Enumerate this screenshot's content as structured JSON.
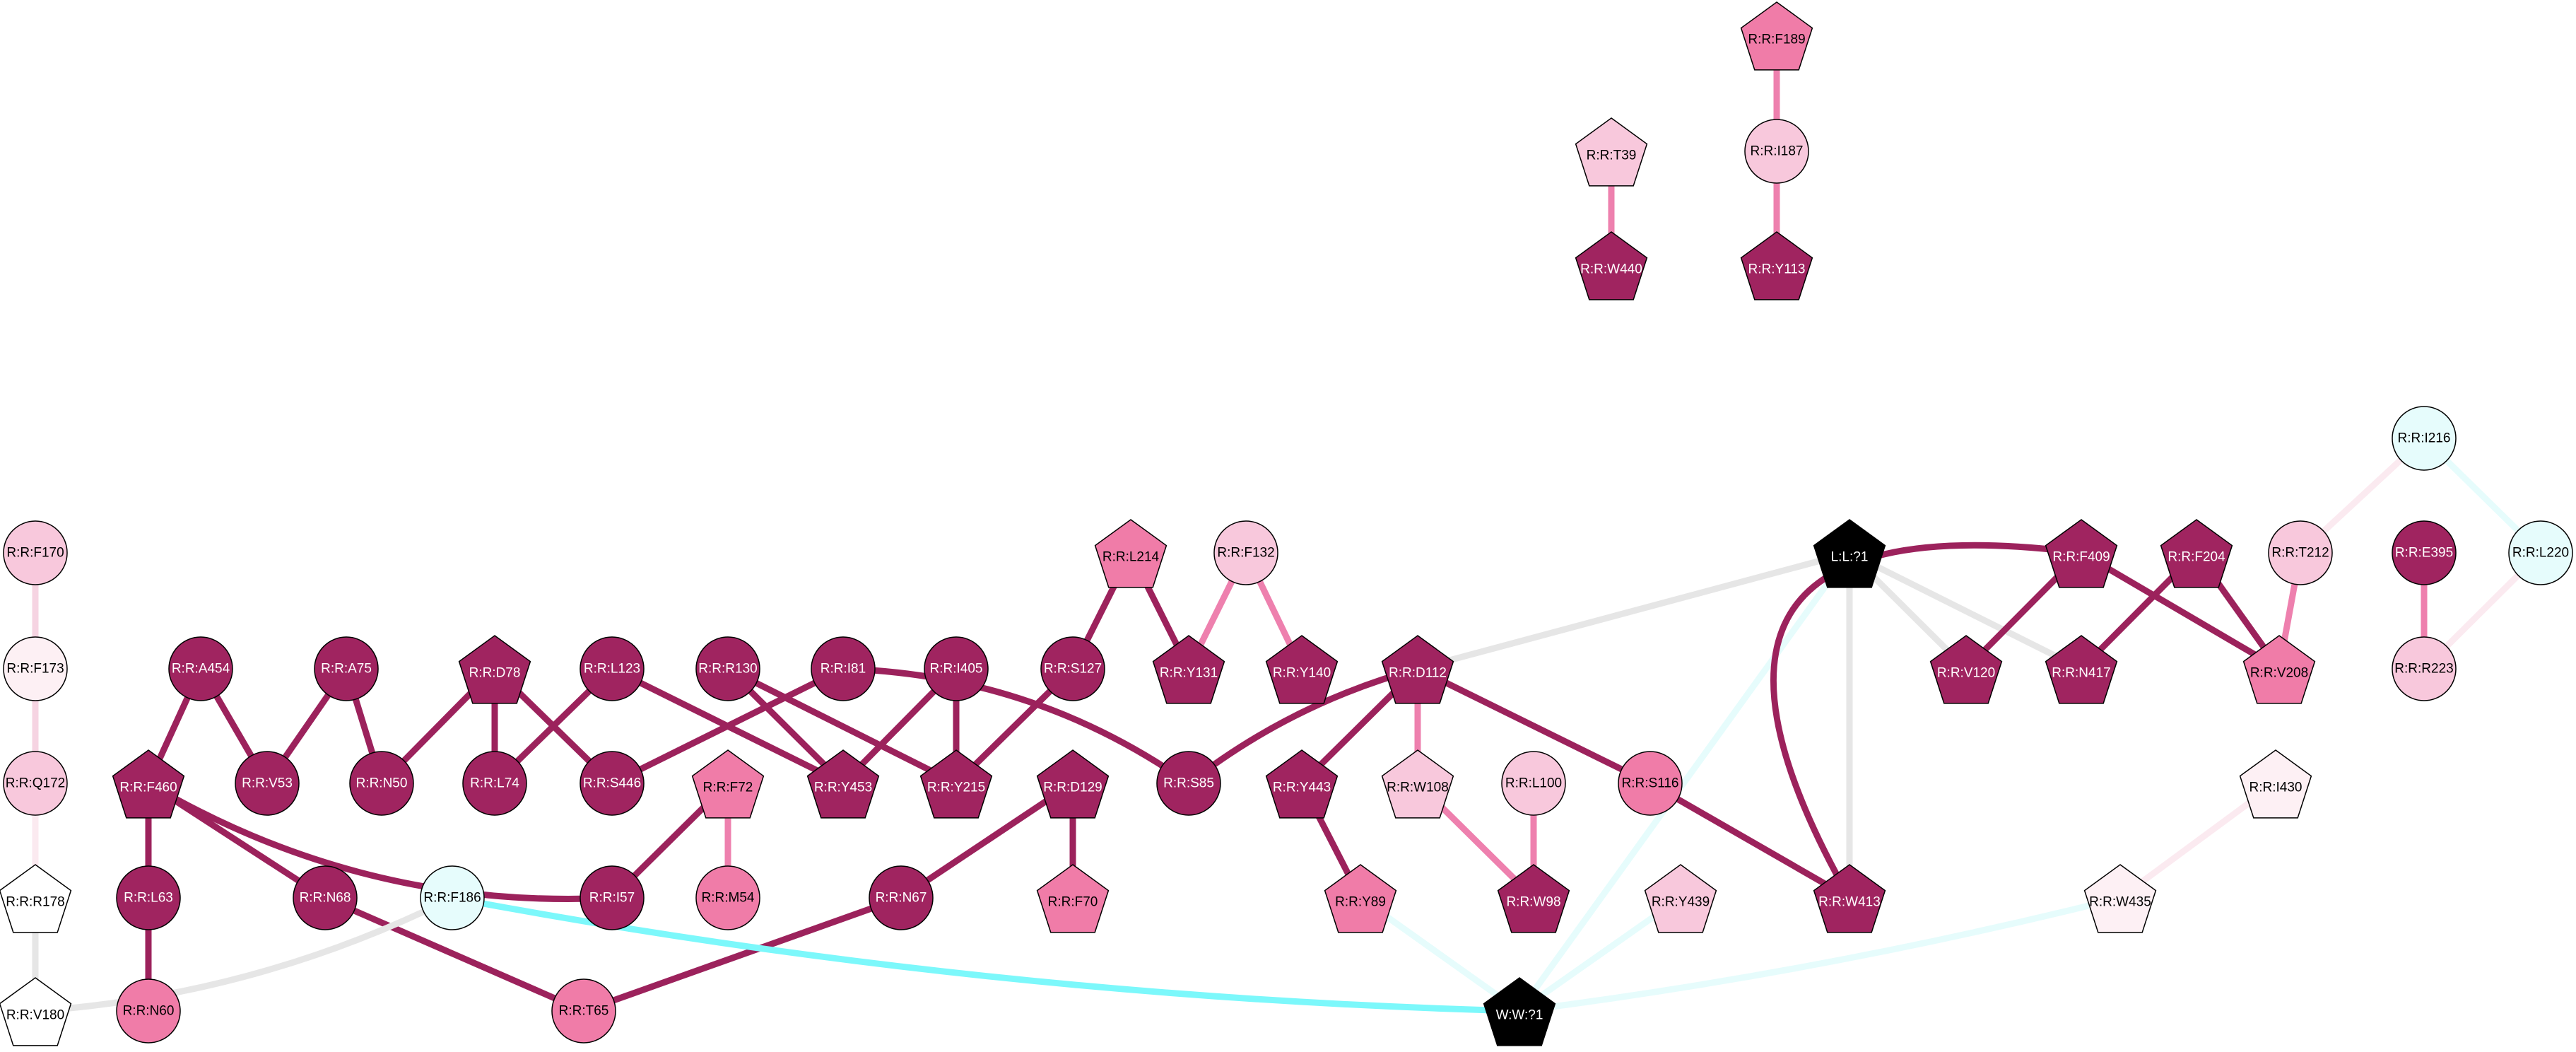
{
  "colors": {
    "dark": "#a02460",
    "mid": "#f07ca8",
    "light": "#f8c8dc",
    "pale": "#fdf0f4",
    "white": "#ffffff",
    "cyan": "#e6fcfc",
    "black": "#000000"
  },
  "edge_colors": {
    "dark": "#9c225c",
    "mid": "#ee80ae",
    "light": "#f6d4e2",
    "pale": "#fbeaf0",
    "gray": "#e6e6e6",
    "cyan": "#7cf8fb",
    "palecyan": "#e6fcfc"
  },
  "nodes": [
    {
      "id": "F189",
      "label": "R:R:F189",
      "shape": "pentagon",
      "color": "mid"
    },
    {
      "id": "T39",
      "label": "R:R:T39",
      "shape": "pentagon",
      "color": "light"
    },
    {
      "id": "I187",
      "label": "R:R:I187",
      "shape": "circle",
      "color": "light"
    },
    {
      "id": "W440",
      "label": "R:R:W440",
      "shape": "pentagon",
      "color": "dark"
    },
    {
      "id": "Y113",
      "label": "R:R:Y113",
      "shape": "pentagon",
      "color": "dark"
    },
    {
      "id": "I216",
      "label": "R:R:I216",
      "shape": "circle",
      "color": "cyan"
    },
    {
      "id": "F170",
      "label": "R:R:F170",
      "shape": "circle",
      "color": "light"
    },
    {
      "id": "L214",
      "label": "R:R:L214",
      "shape": "pentagon",
      "color": "mid"
    },
    {
      "id": "F132",
      "label": "R:R:F132",
      "shape": "circle",
      "color": "light"
    },
    {
      "id": "L1",
      "label": "L:L:?1",
      "shape": "pentagon",
      "color": "black"
    },
    {
      "id": "F409",
      "label": "R:R:F409",
      "shape": "pentagon",
      "color": "dark"
    },
    {
      "id": "F204",
      "label": "R:R:F204",
      "shape": "pentagon",
      "color": "dark"
    },
    {
      "id": "T212",
      "label": "R:R:T212",
      "shape": "circle",
      "color": "light"
    },
    {
      "id": "E395",
      "label": "R:R:E395",
      "shape": "circle",
      "color": "dark"
    },
    {
      "id": "L220",
      "label": "R:R:L220",
      "shape": "circle",
      "color": "cyan"
    },
    {
      "id": "F173",
      "label": "R:R:F173",
      "shape": "circle",
      "color": "pale"
    },
    {
      "id": "A454",
      "label": "R:R:A454",
      "shape": "circle",
      "color": "dark"
    },
    {
      "id": "A75",
      "label": "R:R:A75",
      "shape": "circle",
      "color": "dark"
    },
    {
      "id": "D78",
      "label": "R:R:D78",
      "shape": "pentagon",
      "color": "dark"
    },
    {
      "id": "L123",
      "label": "R:R:L123",
      "shape": "circle",
      "color": "dark"
    },
    {
      "id": "R130",
      "label": "R:R:R130",
      "shape": "circle",
      "color": "dark"
    },
    {
      "id": "I81",
      "label": "R:R:I81",
      "shape": "circle",
      "color": "dark"
    },
    {
      "id": "I405",
      "label": "R:R:I405",
      "shape": "circle",
      "color": "dark"
    },
    {
      "id": "S127",
      "label": "R:R:S127",
      "shape": "circle",
      "color": "dark"
    },
    {
      "id": "Y131",
      "label": "R:R:Y131",
      "shape": "pentagon",
      "color": "dark"
    },
    {
      "id": "Y140",
      "label": "R:R:Y140",
      "shape": "pentagon",
      "color": "dark"
    },
    {
      "id": "D112",
      "label": "R:R:D112",
      "shape": "pentagon",
      "color": "dark"
    },
    {
      "id": "V120",
      "label": "R:R:V120",
      "shape": "pentagon",
      "color": "dark"
    },
    {
      "id": "N417",
      "label": "R:R:N417",
      "shape": "pentagon",
      "color": "dark"
    },
    {
      "id": "V208",
      "label": "R:R:V208",
      "shape": "pentagon",
      "color": "mid"
    },
    {
      "id": "R223",
      "label": "R:R:R223",
      "shape": "circle",
      "color": "light"
    },
    {
      "id": "Q172",
      "label": "R:R:Q172",
      "shape": "circle",
      "color": "light"
    },
    {
      "id": "F460",
      "label": "R:R:F460",
      "shape": "pentagon",
      "color": "dark"
    },
    {
      "id": "V53",
      "label": "R:R:V53",
      "shape": "circle",
      "color": "dark"
    },
    {
      "id": "N50",
      "label": "R:R:N50",
      "shape": "circle",
      "color": "dark"
    },
    {
      "id": "L74",
      "label": "R:R:L74",
      "shape": "circle",
      "color": "dark"
    },
    {
      "id": "S446",
      "label": "R:R:S446",
      "shape": "circle",
      "color": "dark"
    },
    {
      "id": "F72",
      "label": "R:R:F72",
      "shape": "pentagon",
      "color": "mid"
    },
    {
      "id": "Y453",
      "label": "R:R:Y453",
      "shape": "pentagon",
      "color": "dark"
    },
    {
      "id": "Y215",
      "label": "R:R:Y215",
      "shape": "pentagon",
      "color": "dark"
    },
    {
      "id": "D129",
      "label": "R:R:D129",
      "shape": "pentagon",
      "color": "dark"
    },
    {
      "id": "S85",
      "label": "R:R:S85",
      "shape": "circle",
      "color": "dark"
    },
    {
      "id": "Y443",
      "label": "R:R:Y443",
      "shape": "pentagon",
      "color": "dark"
    },
    {
      "id": "W108",
      "label": "R:R:W108",
      "shape": "pentagon",
      "color": "light"
    },
    {
      "id": "L100",
      "label": "R:R:L100",
      "shape": "circle",
      "color": "light"
    },
    {
      "id": "S116",
      "label": "R:R:S116",
      "shape": "circle",
      "color": "mid"
    },
    {
      "id": "I430",
      "label": "R:R:I430",
      "shape": "pentagon",
      "color": "pale"
    },
    {
      "id": "R178",
      "label": "R:R:R178",
      "shape": "pentagon",
      "color": "white"
    },
    {
      "id": "L63",
      "label": "R:R:L63",
      "shape": "circle",
      "color": "dark"
    },
    {
      "id": "N68",
      "label": "R:R:N68",
      "shape": "circle",
      "color": "dark"
    },
    {
      "id": "F186",
      "label": "R:R:F186",
      "shape": "circle",
      "color": "cyan"
    },
    {
      "id": "I57",
      "label": "R:R:I57",
      "shape": "circle",
      "color": "dark"
    },
    {
      "id": "M54",
      "label": "R:R:M54",
      "shape": "circle",
      "color": "mid"
    },
    {
      "id": "N67",
      "label": "R:R:N67",
      "shape": "circle",
      "color": "dark"
    },
    {
      "id": "F70",
      "label": "R:R:F70",
      "shape": "pentagon",
      "color": "mid"
    },
    {
      "id": "Y89",
      "label": "R:R:Y89",
      "shape": "pentagon",
      "color": "mid"
    },
    {
      "id": "W98",
      "label": "R:R:W98",
      "shape": "pentagon",
      "color": "dark"
    },
    {
      "id": "Y439",
      "label": "R:R:Y439",
      "shape": "pentagon",
      "color": "light"
    },
    {
      "id": "W413",
      "label": "R:R:W413",
      "shape": "pentagon",
      "color": "dark"
    },
    {
      "id": "W435",
      "label": "R:R:W435",
      "shape": "pentagon",
      "color": "pale"
    },
    {
      "id": "V180",
      "label": "R:R:V180",
      "shape": "pentagon",
      "color": "white"
    },
    {
      "id": "N60",
      "label": "R:R:N60",
      "shape": "circle",
      "color": "mid"
    },
    {
      "id": "T65",
      "label": "R:R:T65",
      "shape": "circle",
      "color": "mid"
    },
    {
      "id": "W1",
      "label": "W:W:?1",
      "shape": "pentagon",
      "color": "black"
    }
  ],
  "edges": [
    {
      "from": "F189",
      "to": "I187",
      "color": "mid"
    },
    {
      "from": "I187",
      "to": "Y113",
      "color": "mid"
    },
    {
      "from": "T39",
      "to": "W440",
      "color": "mid"
    },
    {
      "from": "I216",
      "to": "T212",
      "color": "pale"
    },
    {
      "from": "I216",
      "to": "L220",
      "color": "palecyan"
    },
    {
      "from": "F170",
      "to": "F173",
      "color": "light"
    },
    {
      "from": "F173",
      "to": "Q172",
      "color": "light"
    },
    {
      "from": "Q172",
      "to": "R178",
      "color": "pale"
    },
    {
      "from": "R178",
      "to": "V180",
      "color": "gray"
    },
    {
      "from": "L214",
      "to": "S127",
      "color": "dark"
    },
    {
      "from": "L214",
      "to": "Y131",
      "color": "dark"
    },
    {
      "from": "F132",
      "to": "Y131",
      "color": "mid"
    },
    {
      "from": "F132",
      "to": "Y140",
      "color": "mid"
    },
    {
      "from": "L1",
      "to": "D112",
      "color": "gray"
    },
    {
      "from": "L1",
      "to": "V120",
      "color": "gray"
    },
    {
      "from": "L1",
      "to": "N417",
      "color": "gray"
    },
    {
      "from": "L1",
      "to": "W413",
      "color": "gray"
    },
    {
      "from": "L1",
      "to": "W1",
      "color": "palecyan"
    },
    {
      "from": "F409",
      "to": "V120",
      "color": "dark"
    },
    {
      "from": "F409",
      "to": "V208",
      "color": "dark"
    },
    {
      "from": "F409",
      "to": "W413",
      "color": "dark",
      "curve": 1
    },
    {
      "from": "F204",
      "to": "N417",
      "color": "dark"
    },
    {
      "from": "F204",
      "to": "V208",
      "color": "dark"
    },
    {
      "from": "T212",
      "to": "V208",
      "color": "mid"
    },
    {
      "from": "E395",
      "to": "R223",
      "color": "mid"
    },
    {
      "from": "L220",
      "to": "R223",
      "color": "pale"
    },
    {
      "from": "A454",
      "to": "F460",
      "color": "dark"
    },
    {
      "from": "A454",
      "to": "V53",
      "color": "dark"
    },
    {
      "from": "A75",
      "to": "V53",
      "color": "dark"
    },
    {
      "from": "A75",
      "to": "N50",
      "color": "dark"
    },
    {
      "from": "D78",
      "to": "N50",
      "color": "dark"
    },
    {
      "from": "D78",
      "to": "L74",
      "color": "dark"
    },
    {
      "from": "D78",
      "to": "S446",
      "color": "dark"
    },
    {
      "from": "L123",
      "to": "L74",
      "color": "dark"
    },
    {
      "from": "L123",
      "to": "Y453",
      "color": "dark"
    },
    {
      "from": "R130",
      "to": "Y453",
      "color": "dark"
    },
    {
      "from": "R130",
      "to": "Y215",
      "color": "dark"
    },
    {
      "from": "I81",
      "to": "S446",
      "color": "dark"
    },
    {
      "from": "I81",
      "to": "S85",
      "color": "dark",
      "curve": -0.15
    },
    {
      "from": "I405",
      "to": "Y453",
      "color": "dark"
    },
    {
      "from": "I405",
      "to": "Y215",
      "color": "dark"
    },
    {
      "from": "S127",
      "to": "Y215",
      "color": "dark"
    },
    {
      "from": "D112",
      "to": "S85",
      "color": "dark",
      "curve": 0.1
    },
    {
      "from": "D112",
      "to": "Y443",
      "color": "dark"
    },
    {
      "from": "D112",
      "to": "W108",
      "color": "mid"
    },
    {
      "from": "D112",
      "to": "S116",
      "color": "dark"
    },
    {
      "from": "F460",
      "to": "L63",
      "color": "dark"
    },
    {
      "from": "F460",
      "to": "N68",
      "color": "dark"
    },
    {
      "from": "F460",
      "to": "I57",
      "color": "dark",
      "curve": 0.15
    },
    {
      "from": "F72",
      "to": "I57",
      "color": "dark"
    },
    {
      "from": "F72",
      "to": "M54",
      "color": "mid"
    },
    {
      "from": "D129",
      "to": "N67",
      "color": "dark"
    },
    {
      "from": "D129",
      "to": "F70",
      "color": "dark"
    },
    {
      "from": "Y443",
      "to": "Y89",
      "color": "dark"
    },
    {
      "from": "W108",
      "to": "W98",
      "color": "mid"
    },
    {
      "from": "L100",
      "to": "W98",
      "color": "mid"
    },
    {
      "from": "S116",
      "to": "W413",
      "color": "dark"
    },
    {
      "from": "I430",
      "to": "W435",
      "color": "pale"
    },
    {
      "from": "L63",
      "to": "N60",
      "color": "dark"
    },
    {
      "from": "N68",
      "to": "T65",
      "color": "dark"
    },
    {
      "from": "N67",
      "to": "T65",
      "color": "dark"
    },
    {
      "from": "F186",
      "to": "W1",
      "color": "cyan",
      "curve": 0.04
    },
    {
      "from": "F186",
      "to": "V180",
      "color": "gray",
      "curve": -0.1
    },
    {
      "from": "Y89",
      "to": "W1",
      "color": "palecyan"
    },
    {
      "from": "Y439",
      "to": "W1",
      "color": "palecyan"
    },
    {
      "from": "W435",
      "to": "W1",
      "color": "palecyan",
      "curve": -0.03
    }
  ]
}
